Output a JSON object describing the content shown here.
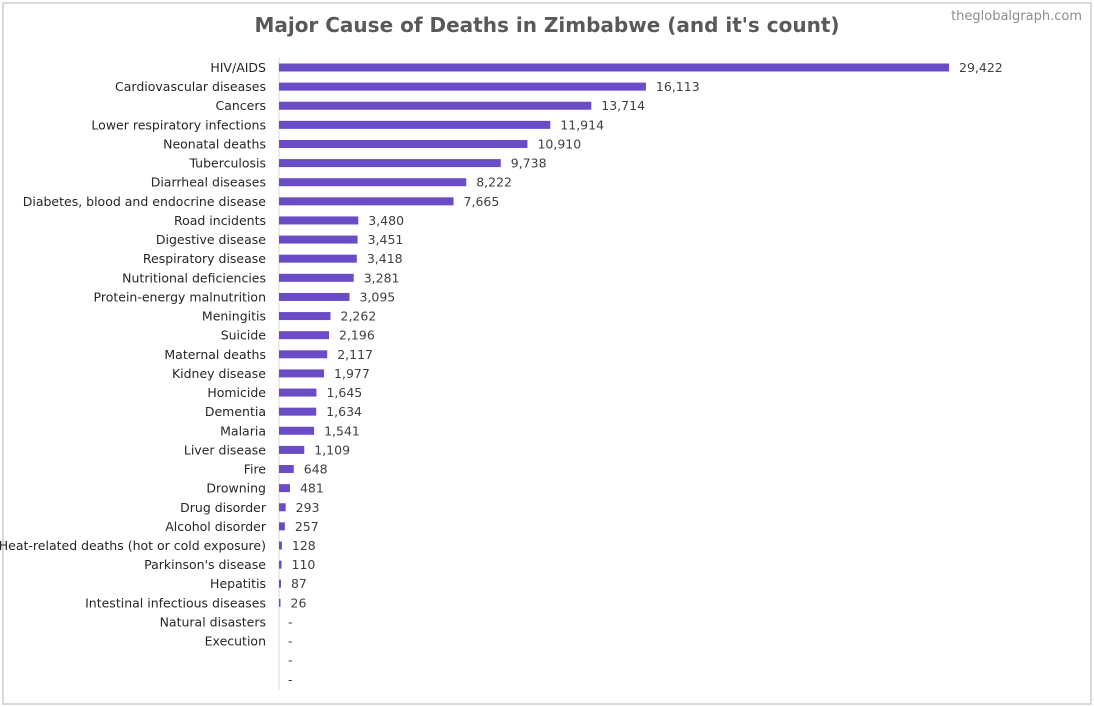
{
  "chart_title": "Major Cause of Deaths in Zimbabwe (and it's count)",
  "watermark": "theglobalgraph.com",
  "colors": {
    "bar": "#6a4cc7",
    "axis": "#d9d9d9",
    "border": "#d9d9d9"
  },
  "chart_data": {
    "type": "bar",
    "orientation": "horizontal",
    "title": "Major Cause of Deaths in Zimbabwe (and it's count)",
    "xlabel": "",
    "ylabel": "",
    "xlim": [
      0,
      29422
    ],
    "grid": false,
    "categories": [
      "HIV/AIDS",
      "Cardiovascular diseases",
      "Cancers",
      "Lower respiratory infections",
      "Neonatal deaths",
      "Tuberculosis",
      "Diarrheal diseases",
      "Diabetes, blood and endocrine disease",
      "Road incidents",
      "Digestive disease",
      "Respiratory disease",
      "Nutritional deficiencies",
      "Protein-energy malnutrition",
      "Meningitis",
      "Suicide",
      "Maternal deaths",
      "Kidney disease",
      "Homicide",
      "Dementia",
      "Malaria",
      "Liver disease",
      "Fire",
      "Drowning",
      "Drug disorder",
      "Alcohol disorder",
      "Heat-related deaths (hot or cold exposure)",
      "Parkinson's disease",
      "Hepatitis",
      "Intestinal infectious diseases",
      "Natural disasters",
      "Execution",
      "",
      ""
    ],
    "values": [
      29422,
      16113,
      13714,
      11914,
      10910,
      9738,
      8222,
      7665,
      3480,
      3451,
      3418,
      3281,
      3095,
      2262,
      2196,
      2117,
      1977,
      1645,
      1634,
      1541,
      1109,
      648,
      481,
      293,
      257,
      128,
      110,
      87,
      26,
      0,
      0,
      0,
      0
    ],
    "data_labels": [
      "29,422",
      "16,113",
      "13,714",
      "11,914",
      "10,910",
      "9,738",
      "8,222",
      "7,665",
      "3,480",
      "3,451",
      "3,418",
      "3,281",
      "3,095",
      "2,262",
      "2,196",
      "2,117",
      "1,977",
      "1,645",
      "1,634",
      "1,541",
      "1,109",
      "648",
      "481",
      "293",
      "257",
      "128",
      "110",
      "87",
      "26",
      "-",
      "-",
      "-",
      "-"
    ]
  }
}
